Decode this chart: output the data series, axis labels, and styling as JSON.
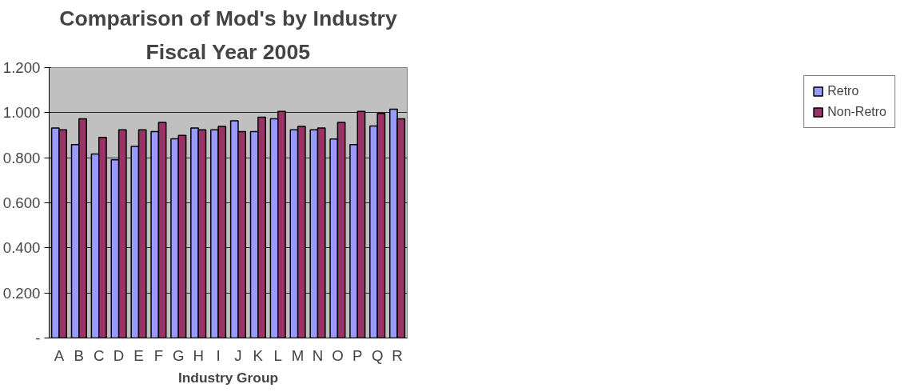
{
  "chart_data": {
    "type": "bar",
    "title": "Comparison of Mod's by Industry",
    "subtitle": "Fiscal Year 2005",
    "xlabel": "Industry Group",
    "categories": [
      "A",
      "B",
      "C",
      "D",
      "E",
      "F",
      "G",
      "H",
      "I",
      "J",
      "K",
      "L",
      "M",
      "N",
      "O",
      "P",
      "Q",
      "R"
    ],
    "series": [
      {
        "name": "Retro",
        "color": "#9999ff",
        "values": [
          0.932,
          0.858,
          0.817,
          0.791,
          0.85,
          0.916,
          0.884,
          0.932,
          0.924,
          0.964,
          0.916,
          0.973,
          0.924,
          0.924,
          0.883,
          0.858,
          0.941,
          1.015
        ]
      },
      {
        "name": "Non-Retro",
        "color": "#993366",
        "values": [
          0.924,
          0.973,
          0.89,
          0.924,
          0.924,
          0.957,
          0.899,
          0.924,
          0.939,
          0.916,
          0.98,
          1.006,
          0.939,
          0.932,
          0.957,
          1.006,
          0.997,
          0.973
        ]
      }
    ],
    "ylim": [
      0,
      1.2
    ],
    "yticks": [
      {
        "value": 0,
        "label": "-"
      },
      {
        "value": 0.2,
        "label": "0.200"
      },
      {
        "value": 0.4,
        "label": "0.400"
      },
      {
        "value": 0.6,
        "label": "0.600"
      },
      {
        "value": 0.8,
        "label": "0.800"
      },
      {
        "value": 1.0,
        "label": "1.000"
      },
      {
        "value": 1.2,
        "label": "1.200"
      }
    ],
    "grid": "y",
    "legend": "right"
  }
}
